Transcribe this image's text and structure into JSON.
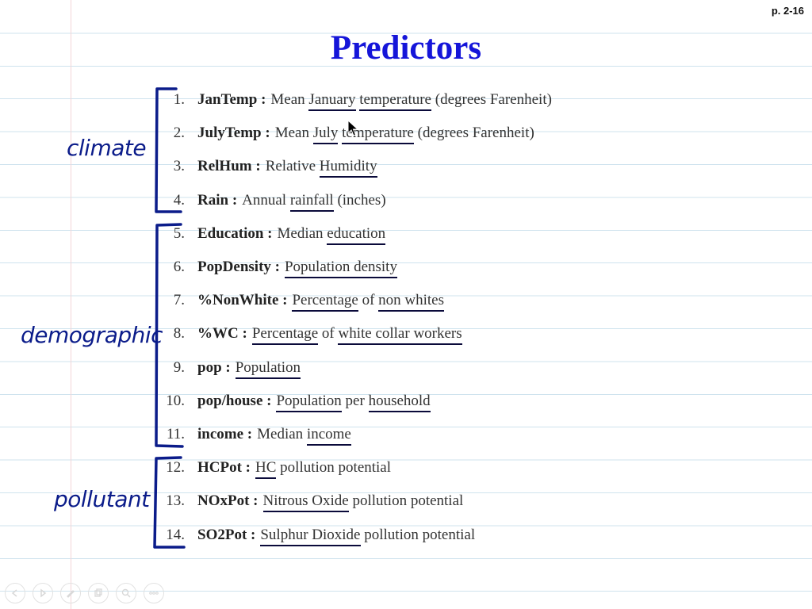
{
  "page_number": "p. 2-16",
  "title": "Predictors",
  "annotations": {
    "climate": "climate",
    "demographic": "demographic",
    "pollutant": "pollutant"
  },
  "items": [
    {
      "num": "1.",
      "key": "JanTemp :",
      "parts": [
        {
          "t": "Mean ",
          "u": false
        },
        {
          "t": "January",
          "u": true
        },
        {
          "t": " ",
          "u": false
        },
        {
          "t": "temperature",
          "u": true
        },
        {
          "t": " (degrees Farenheit)",
          "u": false
        }
      ]
    },
    {
      "num": "2.",
      "key": "JulyTemp :",
      "parts": [
        {
          "t": "Mean ",
          "u": false
        },
        {
          "t": "July",
          "u": true
        },
        {
          "t": " ",
          "u": false
        },
        {
          "t": "temperature",
          "u": true
        },
        {
          "t": " (degrees Farenheit)",
          "u": false
        }
      ]
    },
    {
      "num": "3.",
      "key": "RelHum :",
      "parts": [
        {
          "t": "Relative ",
          "u": false
        },
        {
          "t": "Humidity",
          "u": true
        }
      ]
    },
    {
      "num": "4.",
      "key": "Rain :",
      "parts": [
        {
          "t": "Annual ",
          "u": false
        },
        {
          "t": "rainfall",
          "u": true
        },
        {
          "t": " (inches)",
          "u": false
        }
      ]
    },
    {
      "num": "5.",
      "key": "Education :",
      "parts": [
        {
          "t": "Median ",
          "u": false
        },
        {
          "t": "education",
          "u": true
        }
      ]
    },
    {
      "num": "6.",
      "key": "PopDensity :",
      "parts": [
        {
          "t": "Population density",
          "u": true
        }
      ]
    },
    {
      "num": "7.",
      "key": "%NonWhite :",
      "parts": [
        {
          "t": "Percentage",
          "u": true
        },
        {
          "t": " of ",
          "u": false
        },
        {
          "t": "non whites",
          "u": true
        }
      ]
    },
    {
      "num": "8.",
      "key": "%WC :",
      "parts": [
        {
          "t": "Percentage",
          "u": true
        },
        {
          "t": " of ",
          "u": false
        },
        {
          "t": "white collar workers",
          "u": true
        }
      ]
    },
    {
      "num": "9.",
      "key": "pop :",
      "parts": [
        {
          "t": "Population",
          "u": true
        }
      ]
    },
    {
      "num": "10.",
      "key": "pop/house :",
      "parts": [
        {
          "t": "Population",
          "u": true
        },
        {
          "t": " per ",
          "u": false
        },
        {
          "t": "household",
          "u": true
        }
      ]
    },
    {
      "num": "11.",
      "key": "income :",
      "parts": [
        {
          "t": "Median ",
          "u": false
        },
        {
          "t": "income",
          "u": true
        }
      ]
    },
    {
      "num": "12.",
      "key": "HCPot :",
      "parts": [
        {
          "t": "HC",
          "u": true
        },
        {
          "t": " pollution potential",
          "u": false
        }
      ]
    },
    {
      "num": "13.",
      "key": "NOxPot :",
      "parts": [
        {
          "t": "Nitrous Oxide",
          "u": true
        },
        {
          "t": " pollution potential",
          "u": false
        }
      ]
    },
    {
      "num": "14.",
      "key": "SO2Pot :",
      "parts": [
        {
          "t": "Sulphur Dioxide",
          "u": true
        },
        {
          "t": " pollution potential",
          "u": false
        }
      ]
    }
  ],
  "toolbar": [
    {
      "icon": "back-icon"
    },
    {
      "icon": "play-icon"
    },
    {
      "icon": "pen-icon"
    },
    {
      "icon": "copy-icon"
    },
    {
      "icon": "zoom-icon"
    },
    {
      "icon": "more-icon"
    }
  ],
  "colors": {
    "title": "#1515d9",
    "ink": "#0b1c8a"
  }
}
